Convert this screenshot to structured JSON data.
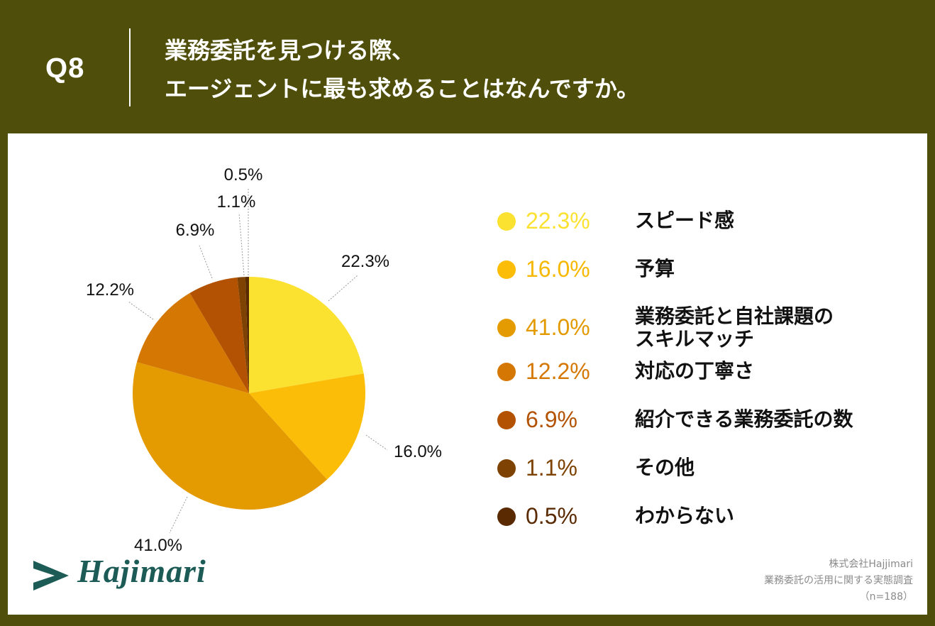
{
  "header": {
    "qnum": "Q8",
    "title_line1": "業務委託を見つける際、",
    "title_line2": "エージェントに最も求めることはなんですか。"
  },
  "colors": {
    "header_bg": "#4f4f0b",
    "panel_bg": "#ffffff",
    "brand": "#1d5c56"
  },
  "chart_data": {
    "type": "pie",
    "title": "業務委託を見つける際、エージェントに最も求めることはなんですか。",
    "start_angle": "12 o'clock, clockwise",
    "slices": [
      {
        "label": "スピード感",
        "value": 22.3,
        "pct_label": "22.3%",
        "color": "#fbe231",
        "legend_text_color": "#fbe231"
      },
      {
        "label": "予算",
        "value": 16.0,
        "pct_label": "16.0%",
        "color": "#fbbd07",
        "legend_text_color": "#f6b800"
      },
      {
        "label": "業務委託と自社課題の\nスキルマッチ",
        "value": 41.0,
        "pct_label": "41.0%",
        "color": "#e49b02",
        "legend_text_color": "#e39a00"
      },
      {
        "label": "対応の丁寧さ",
        "value": 12.2,
        "pct_label": "12.2%",
        "color": "#d57803",
        "legend_text_color": "#d57803"
      },
      {
        "label": "紹介できる業務委託の数",
        "value": 6.9,
        "pct_label": "6.9%",
        "color": "#b35202",
        "legend_text_color": "#b35202"
      },
      {
        "label": "その他",
        "value": 1.1,
        "pct_label": "1.1%",
        "color": "#7e4303",
        "legend_text_color": "#7e4303"
      },
      {
        "label": "わからない",
        "value": 0.5,
        "pct_label": "0.5%",
        "color": "#5a2a02",
        "legend_text_color": "#5a2a02"
      }
    ]
  },
  "logo": {
    "name": "Hajjimari_logo",
    "text": "Hajimari"
  },
  "credit": {
    "company": "株式会社Hajjimari",
    "survey": "業務委託の活用に関する実態調査",
    "n": "（n=188）"
  }
}
